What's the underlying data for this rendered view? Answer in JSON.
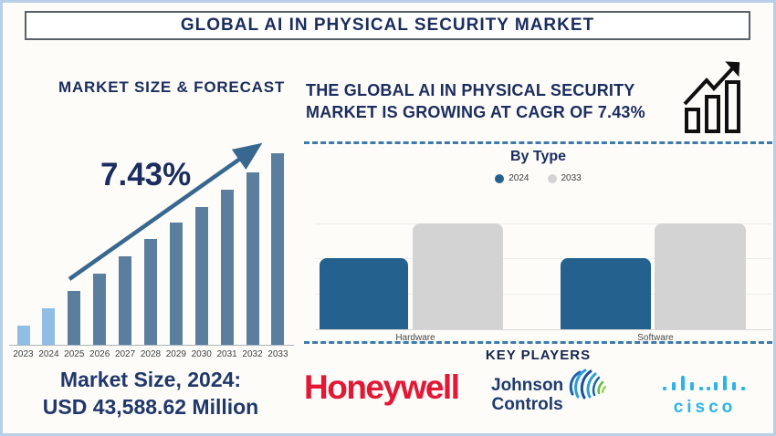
{
  "title": "GLOBAL AI IN PHYSICAL SECURITY MARKET",
  "left": {
    "heading": "MARKET SIZE & FORECAST",
    "cagr_label": "7.43%",
    "market_size_line1": "Market Size, 2024:",
    "market_size_line2": "USD 43,588.62 Million"
  },
  "right": {
    "headline_line1": "THE GLOBAL AI IN PHYSICAL SECURITY",
    "headline_line2": "MARKET IS GROWING AT CAGR OF 7.43%",
    "section_by_type": "By Type",
    "key_players_heading": "KEY PLAYERS",
    "players": {
      "honeywell": "Honeywell",
      "johnson_line1": "Johnson",
      "johnson_line2": "Controls",
      "cisco": "cisco"
    }
  },
  "colors": {
    "accent_navy": "#1b2c5e",
    "frame_blue": "#b9cfe8",
    "dashed_divider": "#3d7bab",
    "left_bar_highlight": "#8fbde4",
    "left_bar_default": "#5b7e9f",
    "arrow": "#38678f",
    "right_bar_2024": "#24618f",
    "right_bar_2033": "#d3d3d3",
    "honeywell_red": "#e21836",
    "jc_navy": "#1d3a6e",
    "cisco_blue": "#2ab5e8"
  },
  "chart_data": [
    {
      "id": "market-size-forecast",
      "type": "bar",
      "title": "MARKET SIZE & FORECAST",
      "categories": [
        "2023",
        "2024",
        "2025",
        "2026",
        "2027",
        "2028",
        "2029",
        "2030",
        "2031",
        "2032",
        "2033"
      ],
      "values_relative_pct_of_2033": [
        10,
        19,
        28,
        37,
        46,
        55,
        64,
        72,
        81,
        90,
        100
      ],
      "known_values": {
        "2024": "USD 43,588.62 Million"
      },
      "cagr": "7.43%",
      "highlight_categories": [
        "2023",
        "2024"
      ],
      "highlight_color": "#8fbde4",
      "default_color": "#5b7e9f",
      "ylabel": "",
      "xlabel": "",
      "grid": false,
      "annotation": "upward trend arrow labeled 7.43%"
    },
    {
      "id": "by-type",
      "type": "bar",
      "title": "By Type",
      "categories": [
        "Hardware",
        "Software"
      ],
      "series": [
        {
          "name": "2024",
          "color": "#24618f",
          "values_relative_pct": [
            67,
            67
          ]
        },
        {
          "name": "2033",
          "color": "#d3d3d3",
          "values_relative_pct": [
            100,
            100
          ]
        }
      ],
      "legend_position": "top",
      "grid": true,
      "note": "no numeric axis shown; heights are relative proportions read from pixels"
    }
  ]
}
